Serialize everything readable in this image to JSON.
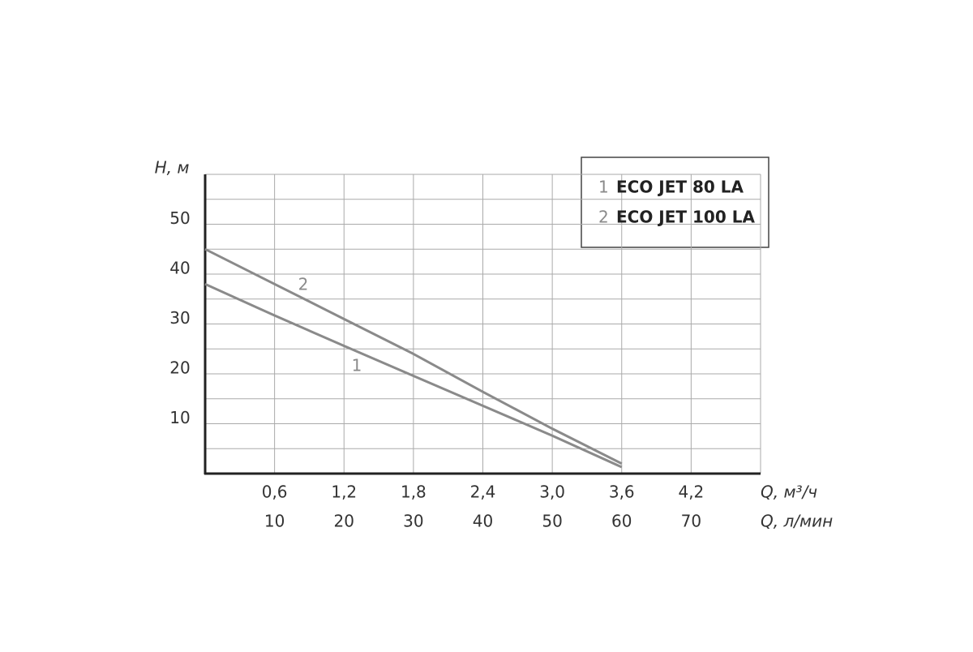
{
  "chart_data": {
    "type": "line",
    "y_label": "H, м",
    "x_label": "Q, м³/ч",
    "x2_label": "Q, л/мин",
    "xlim": [
      0,
      4.8
    ],
    "ylim": [
      0,
      60
    ],
    "x2lim": [
      0,
      80
    ],
    "xticks": [
      {
        "value": 0.6,
        "label": "0,6"
      },
      {
        "value": 1.2,
        "label": "1,2"
      },
      {
        "value": 1.8,
        "label": "1,8"
      },
      {
        "value": 2.4,
        "label": "2,4"
      },
      {
        "value": 3.0,
        "label": "3,0"
      },
      {
        "value": 3.6,
        "label": "3,6"
      },
      {
        "value": 4.2,
        "label": "4,2"
      }
    ],
    "x2ticks": [
      10,
      20,
      30,
      40,
      50,
      60,
      70
    ],
    "yticks": [
      10,
      20,
      30,
      40,
      50
    ],
    "y_minor_ticks": [
      5,
      15,
      25,
      35,
      45,
      55,
      60
    ],
    "grid": true,
    "x": [
      0,
      0.6,
      1.2,
      1.8,
      2.4,
      3.0,
      3.6
    ],
    "series": [
      {
        "name": "ECO JET 80 LA",
        "curve_label": "1",
        "color": "#8a8a8a",
        "values": [
          38,
          31.7,
          25.6,
          19.6,
          13.6,
          7.6,
          1.3
        ]
      },
      {
        "name": "ECO JET 100 LA",
        "curve_label": "2",
        "color": "#8a8a8a",
        "values": [
          45,
          38,
          31,
          24,
          16.4,
          9,
          2
        ]
      }
    ]
  }
}
